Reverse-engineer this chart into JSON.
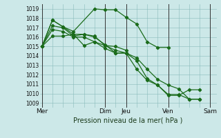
{
  "xlabel": "Pression niveau de la mer( hPa )",
  "bg_color": "#cce8e8",
  "grid_color": "#88bbbb",
  "line_color": "#1a6b1a",
  "marker_color": "#1a6b1a",
  "ylim": [
    1008.5,
    1019.5
  ],
  "ytick_values": [
    1009,
    1010,
    1011,
    1012,
    1013,
    1014,
    1015,
    1016,
    1017,
    1018,
    1019
  ],
  "xtick_positions": [
    0,
    3,
    4,
    6,
    8
  ],
  "xtick_labels": [
    "Mer",
    "Dim",
    "Jeu",
    "Ven",
    "Sam"
  ],
  "xlim": [
    -0.1,
    8.3
  ],
  "vline_positions": [
    0,
    3,
    4,
    6,
    8
  ],
  "series": [
    [
      1015.0,
      1016.1,
      1016.1,
      1016.3,
      1015.1,
      1015.5,
      1015.1,
      1014.6,
      1014.3,
      1012.6,
      1011.4,
      1010.9,
      1009.8,
      1009.8,
      1010.4,
      1010.4
    ],
    [
      1015.0,
      1017.2,
      1017.0,
      1016.1,
      1016.3,
      1016.1,
      1015.1,
      1015.0,
      1014.6
    ],
    [
      1015.0,
      1017.8,
      1017.1,
      1016.6,
      1019.0,
      1018.9,
      1018.9,
      1018.1,
      1017.4,
      1015.5,
      1014.9,
      1014.9
    ],
    [
      1015.0,
      1017.8,
      1017.1,
      1016.3,
      1016.3,
      1016.0,
      1015.2,
      1014.3,
      1014.3,
      1013.8,
      1012.6,
      1011.5,
      1010.9,
      1010.5,
      1009.4,
      1009.4
    ],
    [
      1015.0,
      1016.8,
      1016.6,
      1016.0,
      1016.0,
      1015.5,
      1014.8,
      1014.3,
      1014.3,
      1013.5,
      1011.6,
      1010.9,
      1009.9,
      1009.9,
      1009.4,
      1009.4
    ]
  ],
  "series_x": [
    [
      0,
      0.5,
      1.0,
      1.5,
      2.0,
      2.5,
      3.0,
      3.5,
      4.0,
      4.5,
      5.0,
      5.5,
      6.0,
      6.5,
      7.0,
      7.5
    ],
    [
      0,
      0.5,
      1.0,
      1.5,
      2.0,
      2.5,
      3.0,
      3.5,
      4.0
    ],
    [
      0,
      0.5,
      1.0,
      1.5,
      2.5,
      3.0,
      3.5,
      4.0,
      4.5,
      5.0,
      5.5,
      6.0
    ],
    [
      0,
      0.5,
      1.0,
      1.5,
      2.0,
      2.5,
      3.0,
      3.5,
      4.0,
      4.5,
      5.0,
      5.5,
      6.0,
      6.5,
      7.0,
      7.5
    ],
    [
      0,
      0.5,
      1.0,
      1.5,
      2.0,
      2.5,
      3.0,
      3.5,
      4.0,
      4.5,
      5.0,
      5.5,
      6.0,
      6.5,
      7.0,
      7.5
    ]
  ],
  "xlabel_fontsize": 7,
  "ytick_fontsize": 5.5,
  "xtick_fontsize": 6.5,
  "linewidth": 0.9,
  "markersize": 2.2
}
